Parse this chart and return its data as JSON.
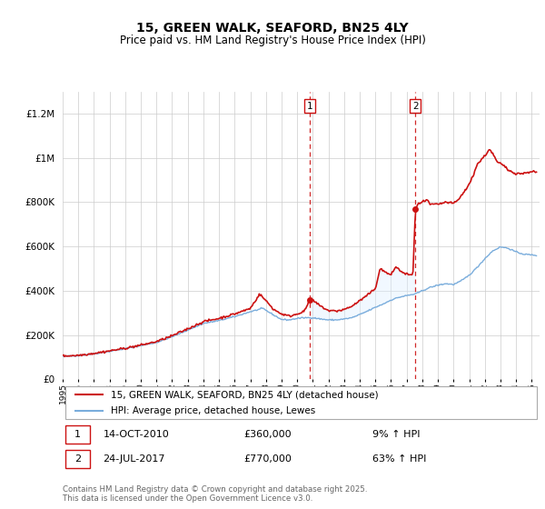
{
  "title": "15, GREEN WALK, SEAFORD, BN25 4LY",
  "subtitle": "Price paid vs. HM Land Registry's House Price Index (HPI)",
  "ylim": [
    0,
    1300000
  ],
  "xlim_start": 1995.0,
  "xlim_end": 2025.5,
  "hpi_color": "#7aaddc",
  "price_color": "#cc1111",
  "shade_color": "#ddeeff",
  "transaction1_x": 2010.79,
  "transaction1_price": 360000,
  "transaction1_date": "14-OCT-2010",
  "transaction1_pct": "9% ↑ HPI",
  "transaction2_x": 2017.56,
  "transaction2_price": 770000,
  "transaction2_date": "24-JUL-2017",
  "transaction2_pct": "63% ↑ HPI",
  "legend_line1": "15, GREEN WALK, SEAFORD, BN25 4LY (detached house)",
  "legend_line2": "HPI: Average price, detached house, Lewes",
  "footnote": "Contains HM Land Registry data © Crown copyright and database right 2025.\nThis data is licensed under the Open Government Licence v3.0.",
  "xticks": [
    1995,
    1996,
    1997,
    1998,
    1999,
    2000,
    2001,
    2002,
    2003,
    2004,
    2005,
    2006,
    2007,
    2008,
    2009,
    2010,
    2011,
    2012,
    2013,
    2014,
    2015,
    2016,
    2017,
    2018,
    2019,
    2020,
    2021,
    2022,
    2023,
    2024,
    2025
  ]
}
